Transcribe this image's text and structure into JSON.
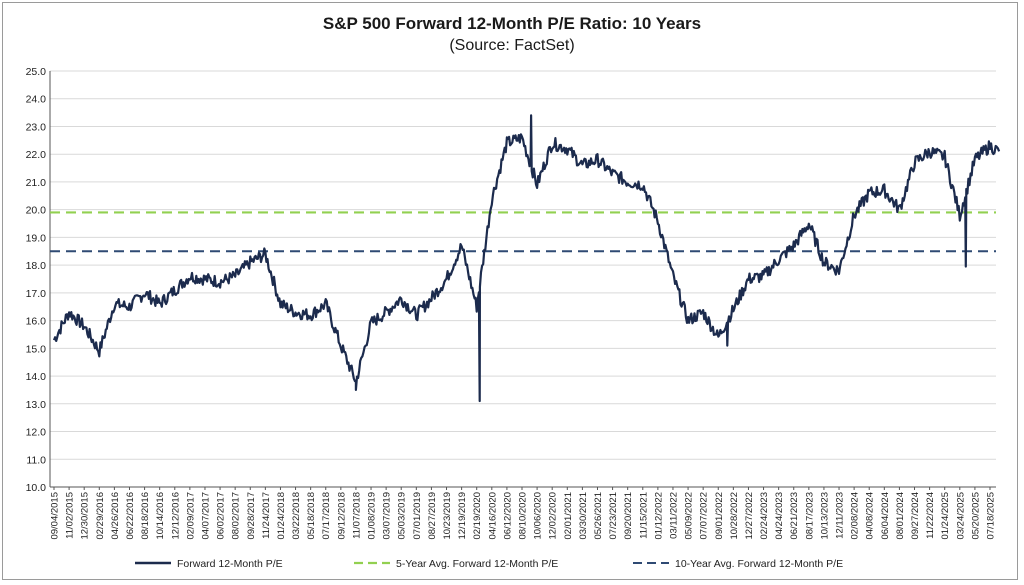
{
  "title": "S&P 500 Forward 12-Month P/E Ratio: 10 Years",
  "subtitle": "(Source: FactSet)",
  "colors": {
    "series": "#1c2b4d",
    "avg5": "#92d050",
    "avg10": "#2f4a73",
    "grid": "#d9d9d9",
    "axis": "#555555"
  },
  "chart_data": {
    "type": "line",
    "title": "S&P 500 Forward 12-Month P/E Ratio: 10 Years",
    "subtitle": "(Source: FactSet)",
    "ylim": [
      10,
      25
    ],
    "y_ticks": [
      "10.0",
      "11.0",
      "12.0",
      "13.0",
      "14.0",
      "15.0",
      "16.0",
      "17.0",
      "18.0",
      "19.0",
      "20.0",
      "21.0",
      "22.0",
      "23.0",
      "24.0",
      "25.0"
    ],
    "x_ticks": [
      "09/04/2015",
      "11/02/2015",
      "12/30/2015",
      "02/29/2016",
      "04/26/2016",
      "06/22/2016",
      "08/18/2016",
      "10/14/2016",
      "12/12/2016",
      "02/09/2017",
      "04/07/2017",
      "06/02/2017",
      "08/02/2017",
      "09/28/2017",
      "11/24/2017",
      "01/24/2018",
      "03/22/2018",
      "05/18/2018",
      "07/17/2018",
      "09/12/2018",
      "11/07/2018",
      "01/08/2019",
      "03/07/2019",
      "05/03/2019",
      "07/01/2019",
      "08/27/2019",
      "10/23/2019",
      "12/19/2019",
      "02/19/2020",
      "04/16/2020",
      "06/12/2020",
      "08/10/2020",
      "10/06/2020",
      "12/02/2020",
      "02/01/2021",
      "03/30/2021",
      "05/26/2021",
      "07/23/2021",
      "09/20/2021",
      "11/15/2021",
      "01/12/2022",
      "03/11/2022",
      "05/09/2022",
      "07/07/2022",
      "09/01/2022",
      "10/28/2022",
      "12/27/2022",
      "02/24/2023",
      "04/24/2023",
      "06/21/2023",
      "08/17/2023",
      "10/13/2023",
      "12/11/2023",
      "02/08/2024",
      "04/08/2024",
      "06/04/2024",
      "08/01/2024",
      "09/27/2024",
      "11/22/2024",
      "01/24/2025",
      "03/24/2025",
      "05/20/2025",
      "07/18/2025"
    ],
    "series": [
      {
        "name": "Forward 12-Month P/E",
        "style": "solid",
        "x": [
          0,
          1,
          2,
          3,
          4,
          5,
          6,
          7,
          8,
          9,
          10,
          11,
          12,
          13,
          14,
          15,
          16,
          17,
          18,
          19,
          20,
          21,
          22,
          23,
          24,
          25,
          26,
          27,
          28,
          29,
          30,
          31,
          32,
          33,
          34,
          35,
          36,
          37,
          38,
          39,
          40,
          41,
          42,
          43,
          44,
          45,
          46,
          47,
          48,
          49,
          50,
          51,
          52,
          53,
          54,
          55,
          56,
          57,
          58,
          59,
          60,
          61,
          62,
          62.6
        ],
        "values": [
          15.3,
          16.3,
          15.8,
          14.9,
          16.6,
          16.5,
          17.0,
          16.6,
          17.1,
          17.6,
          17.5,
          17.4,
          17.6,
          18.1,
          18.4,
          16.6,
          16.3,
          16.2,
          16.6,
          15.1,
          13.8,
          15.9,
          16.3,
          16.8,
          16.2,
          16.8,
          17.5,
          18.7,
          16.5,
          20.4,
          22.4,
          22.6,
          20.9,
          22.4,
          22.2,
          21.6,
          21.8,
          21.3,
          21.0,
          20.9,
          19.6,
          17.6,
          16.0,
          16.3,
          15.4,
          16.4,
          17.5,
          17.6,
          18.2,
          18.7,
          19.5,
          18.1,
          17.8,
          19.8,
          20.6,
          20.7,
          20.0,
          21.7,
          22.1,
          21.9,
          19.8,
          21.8,
          22.3,
          22.1
        ],
        "annotated_points": [
          {
            "x": 20.0,
            "y": 13.5
          },
          {
            "x": 28.2,
            "y": 13.1
          },
          {
            "x": 31.6,
            "y": 23.4
          },
          {
            "x": 44.6,
            "y": 15.1
          },
          {
            "x": 60.4,
            "y": 17.95
          }
        ]
      },
      {
        "name": "5-Year Avg. Forward 12-Month P/E",
        "style": "dashed",
        "constant": 19.9
      },
      {
        "name": "10-Year Avg. Forward 12-Month P/E",
        "style": "dashed",
        "constant": 18.5
      }
    ],
    "grid": true,
    "legend": "bottom"
  }
}
